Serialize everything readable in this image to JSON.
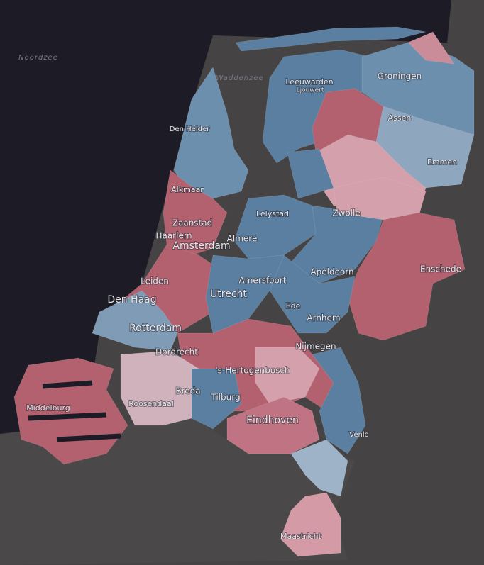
{
  "map": {
    "seas": [
      "Noordzee",
      "Waddenzee"
    ],
    "places": [
      {
        "label": "Leeuwarden"
      },
      {
        "label": "Ljouwert"
      },
      {
        "label": "Groningen"
      },
      {
        "label": "Assen"
      },
      {
        "label": "Emmen"
      },
      {
        "label": "Den Helder"
      },
      {
        "label": "Alkmaar"
      },
      {
        "label": "Lelystad"
      },
      {
        "label": "Zwolle"
      },
      {
        "label": "Zaanstad"
      },
      {
        "label": "Haarlem"
      },
      {
        "label": "Amsterdam"
      },
      {
        "label": "Almere"
      },
      {
        "label": "Enschede"
      },
      {
        "label": "Apeldoorn"
      },
      {
        "label": "Amersfoort"
      },
      {
        "label": "Leiden"
      },
      {
        "label": "Utrecht"
      },
      {
        "label": "Den Haag"
      },
      {
        "label": "Ede"
      },
      {
        "label": "Arnhem"
      },
      {
        "label": "Rotterdam"
      },
      {
        "label": "Nijmegen"
      },
      {
        "label": "Dordrecht"
      },
      {
        "label": "'s-Hertogenbosch"
      },
      {
        "label": "Breda"
      },
      {
        "label": "Roosendaal"
      },
      {
        "label": "Tilburg"
      },
      {
        "label": "Middelburg"
      },
      {
        "label": "Eindhoven"
      },
      {
        "label": "Venlo"
      },
      {
        "label": "Maastricht"
      }
    ]
  }
}
